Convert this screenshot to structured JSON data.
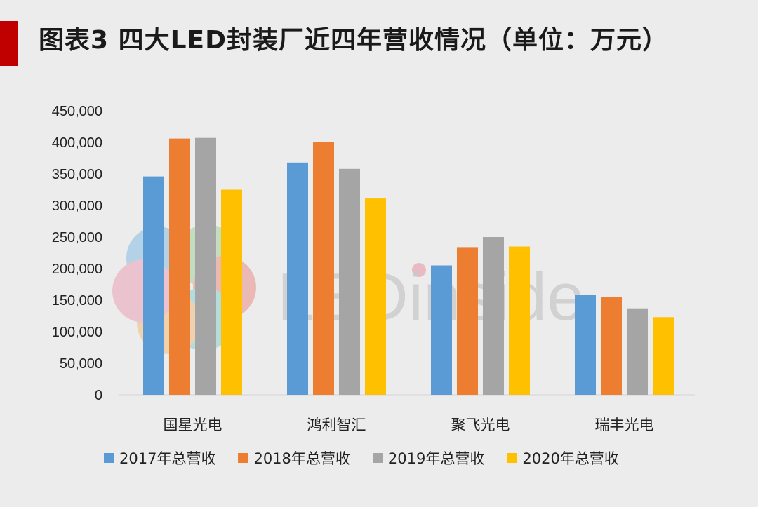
{
  "header": {
    "title": "图表3  四大LED封装厂近四年营收情况（单位：万元）"
  },
  "watermark": {
    "text": "LEDinside"
  },
  "chart_data": {
    "type": "bar",
    "title": "图表3  四大LED封装厂近四年营收情况（单位：万元）",
    "unit": "万元",
    "categories": [
      "国星光电",
      "鸿利智汇",
      "聚飞光电",
      "瑞丰光电"
    ],
    "series": [
      {
        "name": "2017年总营收",
        "color": "#5b9bd5",
        "values": [
          346000,
          368000,
          205000,
          158000
        ]
      },
      {
        "name": "2018年总营收",
        "color": "#ed7d31",
        "values": [
          406000,
          400000,
          234000,
          155000
        ]
      },
      {
        "name": "2019年总营收",
        "color": "#a5a5a5",
        "values": [
          407000,
          358000,
          250000,
          137000
        ]
      },
      {
        "name": "2020年总营收",
        "color": "#ffc000",
        "values": [
          325000,
          311000,
          235000,
          123000
        ]
      }
    ],
    "yticks": [
      "0",
      "50,000",
      "100,000",
      "150,000",
      "200,000",
      "250,000",
      "300,000",
      "350,000",
      "400,000",
      "450,000"
    ],
    "ylim": [
      0,
      450000
    ],
    "grid": false,
    "legend_position": "bottom"
  }
}
